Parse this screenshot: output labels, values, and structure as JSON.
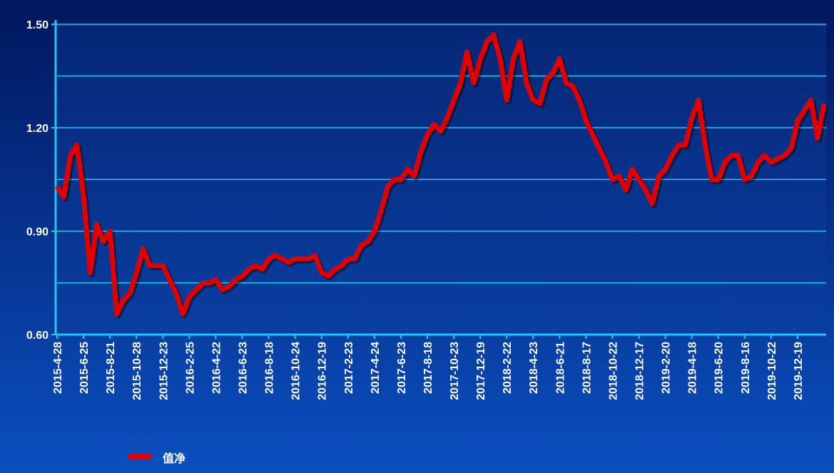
{
  "chart_data": {
    "type": "line",
    "categories": [
      "2015-4-28",
      null,
      null,
      null,
      "2015-6-25",
      null,
      null,
      null,
      "2015-8-21",
      null,
      null,
      null,
      "2015-10-28",
      null,
      null,
      null,
      "2015-12-23",
      null,
      null,
      null,
      "2016-2-25",
      null,
      null,
      null,
      "2016-4-22",
      null,
      null,
      null,
      "2016-6-23",
      null,
      null,
      null,
      "2016-8-18",
      null,
      null,
      null,
      "2016-10-24",
      null,
      null,
      null,
      "2016-12-19",
      null,
      null,
      null,
      "2017-2-23",
      null,
      null,
      null,
      "2017-4-24",
      null,
      null,
      null,
      "2017-6-23",
      null,
      null,
      null,
      "2017-8-18",
      null,
      null,
      null,
      "2017-10-23",
      null,
      null,
      null,
      "2017-12-19",
      null,
      null,
      null,
      "2018-2-22",
      null,
      null,
      null,
      "2018-4-23",
      null,
      null,
      null,
      "2018-6-21",
      null,
      null,
      null,
      "2018-8-17",
      null,
      null,
      null,
      "2018-10-22",
      null,
      null,
      null,
      "2018-12-17",
      null,
      null,
      null,
      "2019-2-20",
      null,
      null,
      null,
      "2019-4-18",
      null,
      null,
      null,
      "2019-6-20",
      null,
      null,
      null,
      "2019-8-16",
      null,
      null,
      null,
      "2019-10-22",
      null,
      null,
      null,
      "2019-12-19",
      null,
      null,
      null,
      null
    ],
    "series": [
      {
        "name": "值净",
        "color": "#e00000",
        "values": [
          1.03,
          1.0,
          1.12,
          1.15,
          1.0,
          0.78,
          0.92,
          0.87,
          0.9,
          0.66,
          0.7,
          0.72,
          0.78,
          0.85,
          0.8,
          0.8,
          0.8,
          0.76,
          0.72,
          0.66,
          0.71,
          0.73,
          0.75,
          0.75,
          0.76,
          0.73,
          0.74,
          0.76,
          0.77,
          0.79,
          0.8,
          0.79,
          0.82,
          0.83,
          0.82,
          0.81,
          0.82,
          0.82,
          0.82,
          0.83,
          0.78,
          0.77,
          0.79,
          0.8,
          0.82,
          0.82,
          0.86,
          0.87,
          0.9,
          0.96,
          1.03,
          1.05,
          1.05,
          1.08,
          1.06,
          1.13,
          1.18,
          1.21,
          1.19,
          1.23,
          1.28,
          1.33,
          1.42,
          1.33,
          1.4,
          1.45,
          1.47,
          1.4,
          1.28,
          1.4,
          1.45,
          1.33,
          1.28,
          1.27,
          1.34,
          1.36,
          1.4,
          1.33,
          1.32,
          1.28,
          1.22,
          1.18,
          1.14,
          1.1,
          1.05,
          1.06,
          1.02,
          1.08,
          1.05,
          1.02,
          0.98,
          1.06,
          1.08,
          1.12,
          1.15,
          1.15,
          1.23,
          1.28,
          1.15,
          1.05,
          1.05,
          1.1,
          1.12,
          1.12,
          1.05,
          1.06,
          1.1,
          1.12,
          1.1,
          1.11,
          1.12,
          1.14,
          1.22,
          1.25,
          1.28,
          1.17,
          1.27
        ]
      }
    ],
    "ylim": [
      0.6,
      1.5
    ],
    "yticks": [
      {
        "value": 0.6,
        "label": "0.60"
      },
      {
        "value": 0.9,
        "label": "0.90"
      },
      {
        "value": 1.2,
        "label": "1.20"
      },
      {
        "value": 1.5,
        "label": "1.50"
      }
    ],
    "minor_yticks": [
      0.75,
      1.05,
      1.35
    ],
    "grid": true
  }
}
